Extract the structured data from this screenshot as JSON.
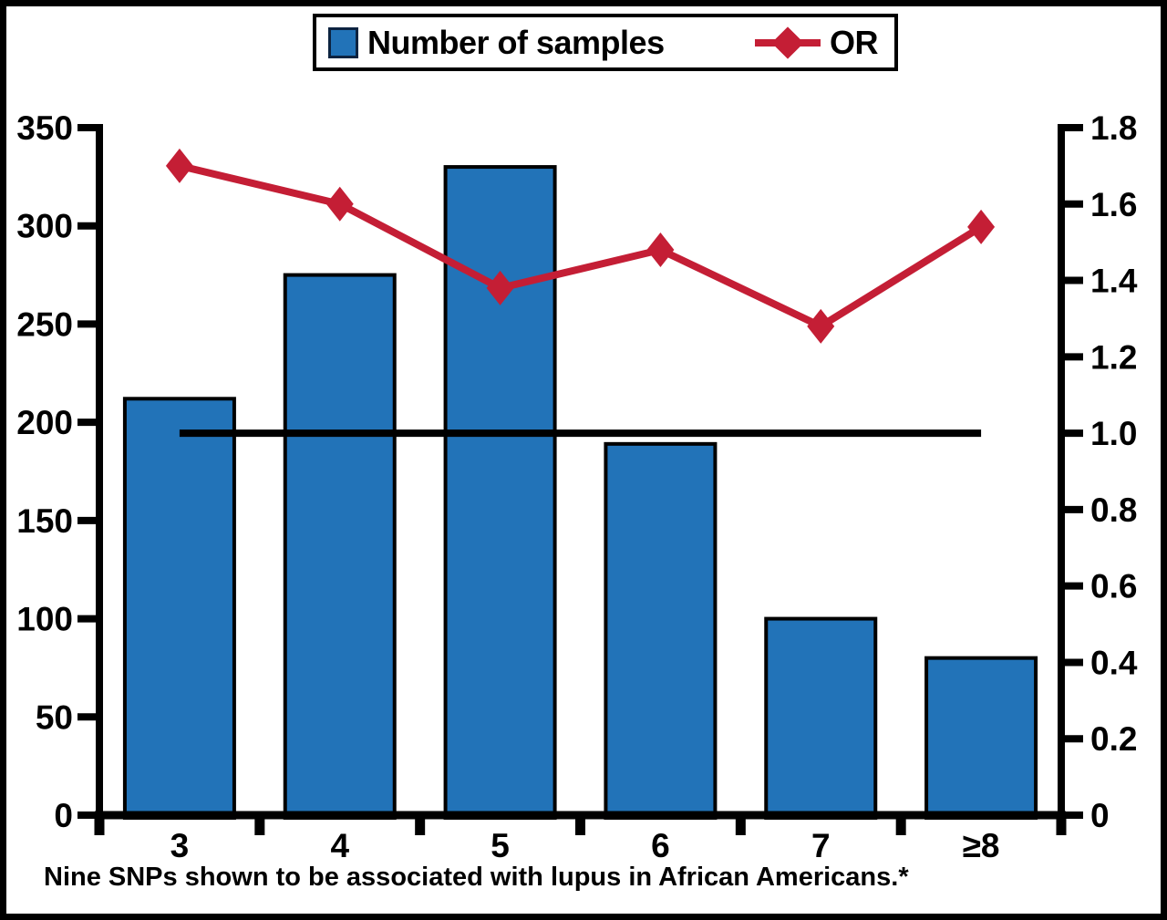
{
  "legend": {
    "items": [
      {
        "label": "Number of samples",
        "swatch": "bar-square",
        "color": "#2273b8"
      },
      {
        "label": "OR",
        "swatch": "line-diamond",
        "color": "#c41e35"
      }
    ]
  },
  "chart_data": {
    "type": "combo-bar-line",
    "categories": [
      "3",
      "4",
      "5",
      "6",
      "7",
      "≥8"
    ],
    "series": [
      {
        "name": "Number of samples",
        "type": "bar",
        "axis": "left",
        "color": "#2273b8",
        "border_color": "#000000",
        "values": [
          212,
          275,
          330,
          189,
          100,
          80
        ]
      },
      {
        "name": "OR",
        "type": "line",
        "axis": "right",
        "color": "#c41e35",
        "marker": "diamond",
        "values": [
          1.7,
          1.6,
          1.38,
          1.48,
          1.28,
          1.54
        ]
      }
    ],
    "left_axis": {
      "min": 0,
      "max": 350,
      "tick_step": 50,
      "tick_labels": [
        "0",
        "50",
        "100",
        "150",
        "200",
        "250",
        "300",
        "350"
      ]
    },
    "right_axis": {
      "min": 0,
      "max": 1.8,
      "tick_step": 0.2,
      "tick_labels": [
        "0",
        "0.2",
        "0.4",
        "0.6",
        "0.8",
        "1.0",
        "1.2",
        "1.4",
        "1.6",
        "1.8"
      ]
    },
    "reference_line": {
      "axis": "right",
      "value": 1.0,
      "color": "#000000"
    },
    "grid": false,
    "legend_position": "top-center",
    "caption": "Nine SNPs shown to be associated with lupus in African Americans.*"
  }
}
